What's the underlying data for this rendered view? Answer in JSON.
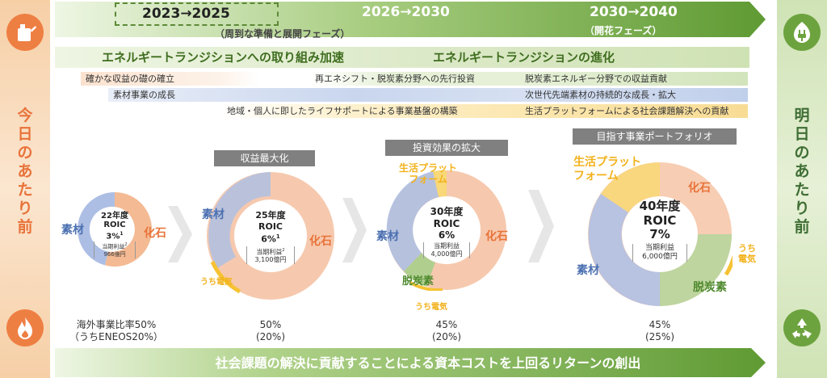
{
  "side": {
    "left_label_lines": [
      "今",
      "日",
      "の",
      "あ",
      "た",
      "り",
      "前"
    ],
    "right_label_lines": [
      "明",
      "日",
      "の",
      "あ",
      "た",
      "り",
      "前"
    ],
    "icons": [
      "oil-can-icon",
      "plug-icon",
      "flame-icon",
      "recycle-icon"
    ]
  },
  "timeline": {
    "phase1_title": "2023→2025",
    "phase1_sub": "（周到な準備と展開フェーズ）",
    "phase2_title": "2026→2030",
    "phase3_title": "2030→2040",
    "phase3_sub": "（開花フェーズ）"
  },
  "banners": {
    "left": "エネルギートランジションへの取り組み加速",
    "right": "エネルギートランジションの進化"
  },
  "bars": {
    "row1_left": "確かな収益の礎の確立",
    "row1_mid": "再エネシフト・脱炭素分野への先行投資",
    "row1_right": "脱炭素エネルギー分野での収益貢献",
    "row2_left": "素材事業の成長",
    "row2_right": "次世代先端素材の持続的な成長・拡大",
    "row3_mid": "地域・個人に即したライフサポートによる事業基盤の構築",
    "row3_right": "生活プラットフォームによる社会課題解決への貢献"
  },
  "stage_labels": {
    "s2": "収益最大化",
    "s3": "投資効果の拡大",
    "s4": "目指す事業ポートフォリオ"
  },
  "donuts": [
    {
      "year": "22年度",
      "roic_label": "ROIC",
      "roic_value": "3%",
      "roic_sup": "1",
      "profit_label": "当期利益",
      "profit_sup": "2",
      "profit_value": "966億円",
      "labels": {
        "materials": "素材",
        "fossil": "化石"
      }
    },
    {
      "year": "25年度",
      "roic_label": "ROIC",
      "roic_value": "6%",
      "roic_sup": "1",
      "profit_label": "当期利益",
      "profit_sup": "2",
      "profit_value": "3,100億円",
      "labels": {
        "materials": "素材",
        "fossil": "化石",
        "power": "うち電気"
      }
    },
    {
      "year": "30年度",
      "roic_label": "ROIC",
      "roic_value": "6%",
      "profit_label": "当期利益",
      "profit_value": "4,000億円",
      "labels": {
        "platform": "生活プラット\nフォーム",
        "materials": "素材",
        "fossil": "化石",
        "decarb": "脱炭素",
        "power": "うち電気"
      }
    },
    {
      "year": "40年度",
      "roic_label": "ROIC",
      "roic_value": "7%",
      "profit_label": "当期利益",
      "profit_value": "6,000億円",
      "labels": {
        "platform": "生活プラット\nフォーム",
        "fossil": "化石",
        "power": "うち\n電気",
        "materials": "素材",
        "decarb": "脱炭素"
      }
    }
  ],
  "overseas": {
    "label": "海外事業比率50%",
    "label2": "（うちENEOS20%）",
    "s2": "50%",
    "s2b": "(20%)",
    "s3": "45%",
    "s3b": "(20%)",
    "s4": "45%",
    "s4b": "(25%)"
  },
  "bottom_banner": "社会課題の解決に貢献することによる資本コストを上回るリターンの創出",
  "colors": {
    "accent_green": "#6da33f",
    "fossil_orange": "#f0a070",
    "materials_blue": "#8fa6d6",
    "power_yellow": "#f6c233",
    "decarb_green": "#9cc77a",
    "platform_yellow": "#f8d878",
    "label_gray": "#808080"
  }
}
